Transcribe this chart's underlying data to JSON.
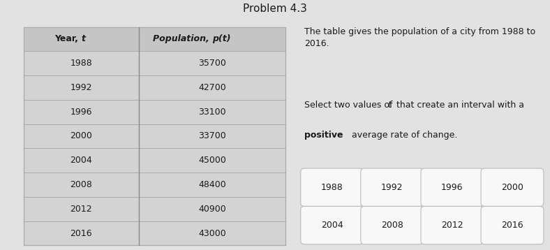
{
  "title": "Problem 4.3",
  "table_headers": [
    "Year,  t",
    "Population, p(t)"
  ],
  "table_rows": [
    [
      "1988",
      "35700"
    ],
    [
      "1992",
      "42700"
    ],
    [
      "1996",
      "33100"
    ],
    [
      "2000",
      "33700"
    ],
    [
      "2004",
      "45000"
    ],
    [
      "2008",
      "48400"
    ],
    [
      "2012",
      "40900"
    ],
    [
      "2016",
      "43000"
    ]
  ],
  "desc_text": "The table gives the population of a city from 1988 to\n2016.",
  "instr_normal1": "Select two values of ",
  "instr_italic": "t",
  "instr_normal2": " that create an interval with a",
  "instr_bold": "positive",
  "instr_normal3": " average rate of change.",
  "buttons_row1": [
    "1988",
    "1992",
    "1996",
    "2000"
  ],
  "buttons_row2": [
    "2004",
    "2008",
    "2012",
    "2016"
  ],
  "fig_bg": "#e2e2e2",
  "table_bg": "#d3d3d3",
  "table_header_bg": "#c5c5c5",
  "right_bg": "#ebebeb",
  "button_bg": "#f8f8f8",
  "button_edge": "#bbbbbb",
  "line_color": "#aaaaaa",
  "divider_color": "#888888",
  "text_color": "#1a1a1a"
}
